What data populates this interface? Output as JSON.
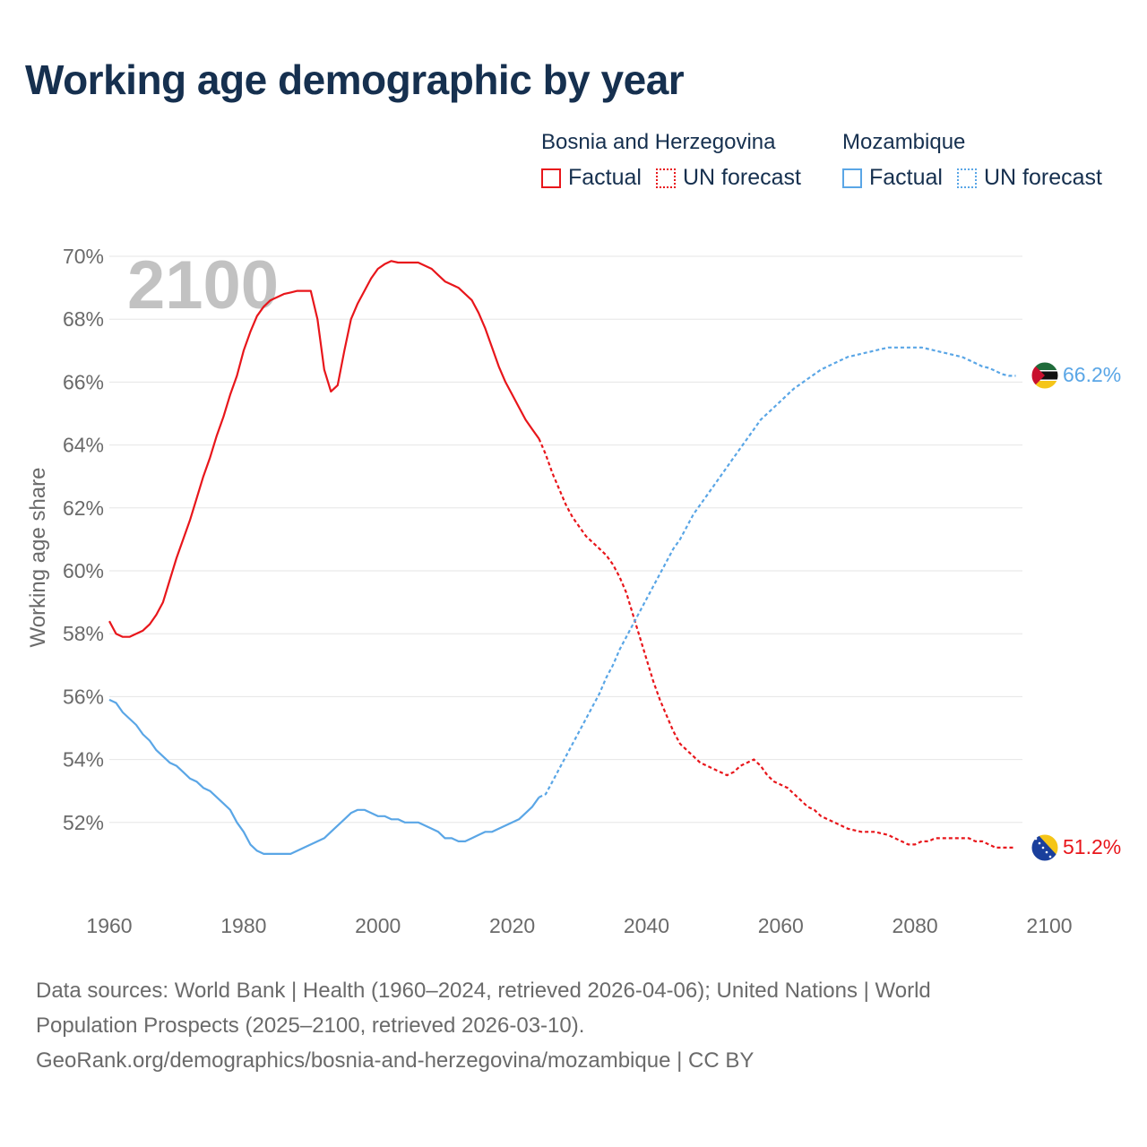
{
  "title": "Working age demographic by year",
  "legend": [
    {
      "name": "Bosnia and Herzegovina",
      "factual_label": "Factual",
      "forecast_label": "UN forecast",
      "color": "#e8161b"
    },
    {
      "name": "Mozambique",
      "factual_label": "Factual",
      "forecast_label": "UN forecast",
      "color": "#5aa6e6"
    }
  ],
  "year_watermark": "2100",
  "sources": {
    "line1": "Data sources: World Bank | Health (1960–2024, retrieved 2026-04-06); United Nations | World",
    "line2": "Population Prospects (2025–2100, retrieved 2026-03-10).",
    "line3": "GeoRank.org/demographics/bosnia-and-herzegovina/mozambique | CC BY"
  },
  "chart_data": {
    "type": "line",
    "title": "Working age demographic by year",
    "ylabel": "Working age share",
    "xlabel": "",
    "x_ticks": [
      "1960",
      "1980",
      "2000",
      "2020",
      "2040",
      "2060",
      "2080",
      "2100"
    ],
    "y_ticks": [
      "52%",
      "54%",
      "56%",
      "58%",
      "60%",
      "62%",
      "64%",
      "66%",
      "68%",
      "70%"
    ],
    "xlim": [
      1960,
      2100
    ],
    "ylim": [
      50,
      70
    ],
    "grid": true,
    "forecast_start": 2024,
    "series": [
      {
        "name": "Bosnia and Herzegovina",
        "color": "#e8161b",
        "end_label": "51.2%",
        "points": [
          [
            1960,
            58.4
          ],
          [
            1961,
            58.0
          ],
          [
            1962,
            57.9
          ],
          [
            1963,
            57.9
          ],
          [
            1964,
            58.0
          ],
          [
            1965,
            58.1
          ],
          [
            1966,
            58.3
          ],
          [
            1967,
            58.6
          ],
          [
            1968,
            59.0
          ],
          [
            1969,
            59.7
          ],
          [
            1970,
            60.4
          ],
          [
            1971,
            61.0
          ],
          [
            1972,
            61.6
          ],
          [
            1973,
            62.3
          ],
          [
            1974,
            63.0
          ],
          [
            1975,
            63.6
          ],
          [
            1976,
            64.3
          ],
          [
            1977,
            64.9
          ],
          [
            1978,
            65.6
          ],
          [
            1979,
            66.2
          ],
          [
            1980,
            67.0
          ],
          [
            1981,
            67.6
          ],
          [
            1982,
            68.1
          ],
          [
            1983,
            68.4
          ],
          [
            1984,
            68.6
          ],
          [
            1985,
            68.7
          ],
          [
            1986,
            68.8
          ],
          [
            1987,
            68.85
          ],
          [
            1988,
            68.9
          ],
          [
            1989,
            68.9
          ],
          [
            1990,
            68.9
          ],
          [
            1991,
            68.0
          ],
          [
            1992,
            66.4
          ],
          [
            1993,
            65.7
          ],
          [
            1994,
            65.9
          ],
          [
            1995,
            67.0
          ],
          [
            1996,
            68.0
          ],
          [
            1997,
            68.5
          ],
          [
            1998,
            68.9
          ],
          [
            1999,
            69.3
          ],
          [
            2000,
            69.6
          ],
          [
            2001,
            69.75
          ],
          [
            2002,
            69.85
          ],
          [
            2003,
            69.8
          ],
          [
            2004,
            69.8
          ],
          [
            2005,
            69.8
          ],
          [
            2006,
            69.8
          ],
          [
            2007,
            69.7
          ],
          [
            2008,
            69.6
          ],
          [
            2009,
            69.4
          ],
          [
            2010,
            69.2
          ],
          [
            2011,
            69.1
          ],
          [
            2012,
            69.0
          ],
          [
            2013,
            68.8
          ],
          [
            2014,
            68.6
          ],
          [
            2015,
            68.2
          ],
          [
            2016,
            67.7
          ],
          [
            2017,
            67.1
          ],
          [
            2018,
            66.5
          ],
          [
            2019,
            66.0
          ],
          [
            2020,
            65.6
          ],
          [
            2021,
            65.2
          ],
          [
            2022,
            64.8
          ],
          [
            2023,
            64.5
          ],
          [
            2024,
            64.2
          ],
          [
            2025,
            63.7
          ],
          [
            2026,
            63.1
          ],
          [
            2027,
            62.6
          ],
          [
            2028,
            62.1
          ],
          [
            2029,
            61.7
          ],
          [
            2030,
            61.4
          ],
          [
            2031,
            61.1
          ],
          [
            2032,
            60.9
          ],
          [
            2033,
            60.7
          ],
          [
            2034,
            60.5
          ],
          [
            2035,
            60.2
          ],
          [
            2036,
            59.8
          ],
          [
            2037,
            59.3
          ],
          [
            2038,
            58.6
          ],
          [
            2039,
            57.9
          ],
          [
            2040,
            57.2
          ],
          [
            2041,
            56.5
          ],
          [
            2042,
            55.9
          ],
          [
            2043,
            55.4
          ],
          [
            2044,
            54.9
          ],
          [
            2045,
            54.5
          ],
          [
            2046,
            54.3
          ],
          [
            2047,
            54.1
          ],
          [
            2048,
            53.9
          ],
          [
            2049,
            53.8
          ],
          [
            2050,
            53.7
          ],
          [
            2051,
            53.6
          ],
          [
            2052,
            53.5
          ],
          [
            2053,
            53.6
          ],
          [
            2054,
            53.8
          ],
          [
            2055,
            53.9
          ],
          [
            2056,
            54.0
          ],
          [
            2057,
            53.8
          ],
          [
            2058,
            53.5
          ],
          [
            2059,
            53.3
          ],
          [
            2060,
            53.2
          ],
          [
            2061,
            53.1
          ],
          [
            2062,
            52.9
          ],
          [
            2063,
            52.7
          ],
          [
            2064,
            52.5
          ],
          [
            2065,
            52.4
          ],
          [
            2066,
            52.2
          ],
          [
            2067,
            52.1
          ],
          [
            2068,
            52.0
          ],
          [
            2069,
            51.9
          ],
          [
            2070,
            51.8
          ],
          [
            2071,
            51.75
          ],
          [
            2072,
            51.7
          ],
          [
            2073,
            51.7
          ],
          [
            2074,
            51.7
          ],
          [
            2075,
            51.65
          ],
          [
            2076,
            51.6
          ],
          [
            2077,
            51.5
          ],
          [
            2078,
            51.4
          ],
          [
            2079,
            51.3
          ],
          [
            2080,
            51.3
          ],
          [
            2081,
            51.4
          ],
          [
            2082,
            51.4
          ],
          [
            2083,
            51.5
          ],
          [
            2084,
            51.5
          ],
          [
            2085,
            51.5
          ],
          [
            2086,
            51.5
          ],
          [
            2087,
            51.5
          ],
          [
            2088,
            51.5
          ],
          [
            2089,
            51.4
          ],
          [
            2090,
            51.4
          ],
          [
            2091,
            51.3
          ],
          [
            2092,
            51.2
          ],
          [
            2093,
            51.2
          ],
          [
            2094,
            51.2
          ],
          [
            2095,
            51.2
          ]
        ]
      },
      {
        "name": "Mozambique",
        "color": "#5aa6e6",
        "end_label": "66.2%",
        "points": [
          [
            1960,
            55.9
          ],
          [
            1961,
            55.8
          ],
          [
            1962,
            55.5
          ],
          [
            1963,
            55.3
          ],
          [
            1964,
            55.1
          ],
          [
            1965,
            54.8
          ],
          [
            1966,
            54.6
          ],
          [
            1967,
            54.3
          ],
          [
            1968,
            54.1
          ],
          [
            1969,
            53.9
          ],
          [
            1970,
            53.8
          ],
          [
            1971,
            53.6
          ],
          [
            1972,
            53.4
          ],
          [
            1973,
            53.3
          ],
          [
            1974,
            53.1
          ],
          [
            1975,
            53.0
          ],
          [
            1976,
            52.8
          ],
          [
            1977,
            52.6
          ],
          [
            1978,
            52.4
          ],
          [
            1979,
            52.0
          ],
          [
            1980,
            51.7
          ],
          [
            1981,
            51.3
          ],
          [
            1982,
            51.1
          ],
          [
            1983,
            51.0
          ],
          [
            1984,
            51.0
          ],
          [
            1985,
            51.0
          ],
          [
            1986,
            51.0
          ],
          [
            1987,
            51.0
          ],
          [
            1988,
            51.1
          ],
          [
            1989,
            51.2
          ],
          [
            1990,
            51.3
          ],
          [
            1991,
            51.4
          ],
          [
            1992,
            51.5
          ],
          [
            1993,
            51.7
          ],
          [
            1994,
            51.9
          ],
          [
            1995,
            52.1
          ],
          [
            1996,
            52.3
          ],
          [
            1997,
            52.4
          ],
          [
            1998,
            52.4
          ],
          [
            1999,
            52.3
          ],
          [
            2000,
            52.2
          ],
          [
            2001,
            52.2
          ],
          [
            2002,
            52.1
          ],
          [
            2003,
            52.1
          ],
          [
            2004,
            52.0
          ],
          [
            2005,
            52.0
          ],
          [
            2006,
            52.0
          ],
          [
            2007,
            51.9
          ],
          [
            2008,
            51.8
          ],
          [
            2009,
            51.7
          ],
          [
            2010,
            51.5
          ],
          [
            2011,
            51.5
          ],
          [
            2012,
            51.4
          ],
          [
            2013,
            51.4
          ],
          [
            2014,
            51.5
          ],
          [
            2015,
            51.6
          ],
          [
            2016,
            51.7
          ],
          [
            2017,
            51.7
          ],
          [
            2018,
            51.8
          ],
          [
            2019,
            51.9
          ],
          [
            2020,
            52.0
          ],
          [
            2021,
            52.1
          ],
          [
            2022,
            52.3
          ],
          [
            2023,
            52.5
          ],
          [
            2024,
            52.8
          ],
          [
            2025,
            52.9
          ],
          [
            2026,
            53.3
          ],
          [
            2027,
            53.7
          ],
          [
            2028,
            54.1
          ],
          [
            2029,
            54.5
          ],
          [
            2030,
            54.9
          ],
          [
            2031,
            55.3
          ],
          [
            2032,
            55.7
          ],
          [
            2033,
            56.1
          ],
          [
            2034,
            56.6
          ],
          [
            2035,
            57.0
          ],
          [
            2036,
            57.5
          ],
          [
            2037,
            57.9
          ],
          [
            2038,
            58.3
          ],
          [
            2039,
            58.7
          ],
          [
            2040,
            59.1
          ],
          [
            2041,
            59.5
          ],
          [
            2042,
            59.9
          ],
          [
            2043,
            60.3
          ],
          [
            2044,
            60.7
          ],
          [
            2045,
            61.0
          ],
          [
            2046,
            61.4
          ],
          [
            2047,
            61.8
          ],
          [
            2048,
            62.1
          ],
          [
            2049,
            62.4
          ],
          [
            2050,
            62.7
          ],
          [
            2051,
            63.0
          ],
          [
            2052,
            63.3
          ],
          [
            2053,
            63.6
          ],
          [
            2054,
            63.9
          ],
          [
            2055,
            64.2
          ],
          [
            2056,
            64.5
          ],
          [
            2057,
            64.8
          ],
          [
            2058,
            65.0
          ],
          [
            2059,
            65.2
          ],
          [
            2060,
            65.4
          ],
          [
            2061,
            65.6
          ],
          [
            2062,
            65.8
          ],
          [
            2063,
            65.95
          ],
          [
            2064,
            66.1
          ],
          [
            2065,
            66.25
          ],
          [
            2066,
            66.4
          ],
          [
            2067,
            66.5
          ],
          [
            2068,
            66.6
          ],
          [
            2069,
            66.7
          ],
          [
            2070,
            66.8
          ],
          [
            2071,
            66.85
          ],
          [
            2072,
            66.9
          ],
          [
            2073,
            66.95
          ],
          [
            2074,
            67.0
          ],
          [
            2075,
            67.05
          ],
          [
            2076,
            67.1
          ],
          [
            2077,
            67.1
          ],
          [
            2078,
            67.1
          ],
          [
            2079,
            67.1
          ],
          [
            2080,
            67.1
          ],
          [
            2081,
            67.1
          ],
          [
            2082,
            67.05
          ],
          [
            2083,
            67.0
          ],
          [
            2084,
            66.95
          ],
          [
            2085,
            66.9
          ],
          [
            2086,
            66.85
          ],
          [
            2087,
            66.8
          ],
          [
            2088,
            66.7
          ],
          [
            2089,
            66.6
          ],
          [
            2090,
            66.5
          ],
          [
            2091,
            66.45
          ],
          [
            2092,
            66.35
          ],
          [
            2093,
            66.25
          ],
          [
            2094,
            66.2
          ],
          [
            2095,
            66.2
          ]
        ]
      }
    ]
  }
}
